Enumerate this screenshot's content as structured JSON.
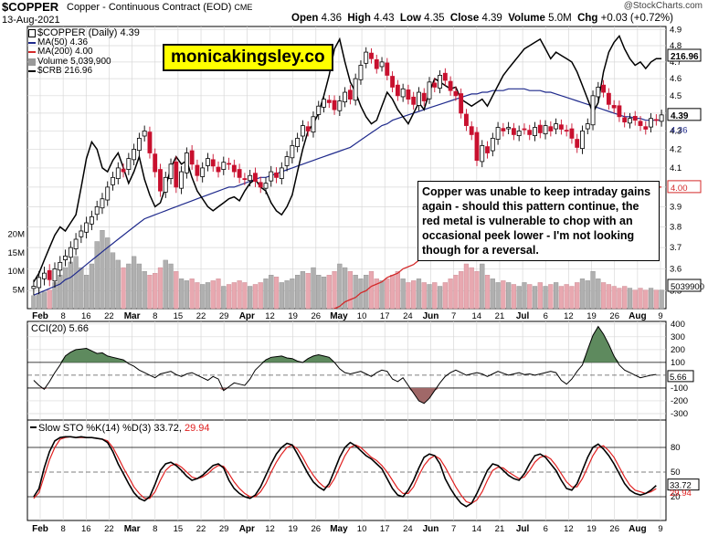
{
  "header": {
    "symbol": "$COPPER",
    "description": "Copper - Continuous Contract (EOD)",
    "exchange": "CME",
    "date": "13-Aug-2021",
    "open_label": "Open",
    "open": "4.36",
    "high_label": "High",
    "high": "4.43",
    "low_label": "Low",
    "low": "4.35",
    "close_label": "Close",
    "close": "4.39",
    "volume_label": "Volume",
    "volume": "5.0M",
    "chg_label": "Chg",
    "chg": "+0.03 (+0.72%)",
    "source": "@StockCharts.com"
  },
  "watermark": "monicakingsley.co",
  "annotation": "Copper was unable to keep intraday gains again - should this pattern continue, the red metal is vulnerable to chop with an occasional peek lower - I'm not looking though for a reversal.",
  "legend": [
    {
      "text": "$COPPER (Daily) 4.39",
      "color": "#000000",
      "kind": "candle"
    },
    {
      "text": "MA(50) 4.36",
      "color": "#1f2a8c",
      "kind": "line"
    },
    {
      "text": "MA(200) 4.00",
      "color": "#d42a2a",
      "kind": "line"
    },
    {
      "text": "Volume 5,039,900",
      "color": "#9a9a9a",
      "kind": "bar"
    },
    {
      "text": "$CRB 216.96",
      "color": "#000000",
      "kind": "line"
    }
  ],
  "colors": {
    "up": "#000000",
    "down": "#c8102e",
    "ma50": "#1f2a8c",
    "ma200": "#d42a2a",
    "vol_up": "#b0b0b0",
    "vol_down": "#e8a8b0",
    "cci_pos": "#5e8a5e",
    "cci_neg": "#a06868",
    "sto_k": "#000000",
    "sto_d": "#e02020",
    "grid": "#d8d8d8"
  },
  "chart_data": [
    {
      "type": "candlestick",
      "title": "$COPPER (Daily) 4.39",
      "ylim": [
        3.42,
        4.92
      ],
      "y_scale": "log",
      "y_ticks": [
        "4.9",
        "4.8",
        "4.7",
        "4.6",
        "4.5",
        "4.4",
        "4.3",
        "4.2",
        "4.1",
        "4.0",
        "3.9",
        "3.8",
        "3.7",
        "3.6",
        "3.5"
      ],
      "x_labels": [
        "Feb",
        "8",
        "16",
        "22",
        "Mar",
        "8",
        "15",
        "22",
        "29",
        "Apr",
        "12",
        "19",
        "26",
        "May",
        "10",
        "17",
        "24",
        "Jun",
        "7",
        "14",
        "21",
        "Jul",
        "6",
        "12",
        "19",
        "26",
        "Aug",
        "9"
      ],
      "last_value_label": "4.39",
      "ma50_label": "4.36",
      "ma200_label": "4.00",
      "crb_label": "216.96",
      "volume_label": "5039900",
      "volume_ticks": [
        "20M",
        "15M",
        "10M",
        "5M"
      ],
      "close": [
        3.52,
        3.56,
        3.58,
        3.55,
        3.6,
        3.63,
        3.66,
        3.7,
        3.74,
        3.78,
        3.82,
        3.85,
        3.9,
        3.94,
        4.0,
        4.05,
        4.1,
        4.08,
        4.15,
        4.2,
        4.26,
        4.3,
        4.18,
        4.08,
        3.98,
        4.05,
        4.12,
        4.0,
        4.08,
        4.18,
        4.12,
        4.06,
        4.1,
        4.15,
        4.11,
        4.08,
        4.13,
        4.12,
        4.08,
        4.05,
        4.04,
        4.06,
        4.03,
        4.0,
        4.02,
        4.08,
        4.05,
        4.1,
        4.16,
        4.22,
        4.26,
        4.33,
        4.3,
        4.38,
        4.44,
        4.48,
        4.46,
        4.42,
        4.47,
        4.52,
        4.48,
        4.6,
        4.68,
        4.76,
        4.72,
        4.66,
        4.7,
        4.62,
        4.55,
        4.5,
        4.54,
        4.48,
        4.45,
        4.52,
        4.47,
        4.58,
        4.55,
        4.62,
        4.59,
        4.53,
        4.5,
        4.4,
        4.33,
        4.28,
        4.14,
        4.22,
        4.18,
        4.26,
        4.32,
        4.3,
        4.32,
        4.28,
        4.3,
        4.31,
        4.28,
        4.32,
        4.29,
        4.33,
        4.3,
        4.34,
        4.31,
        4.3,
        4.26,
        4.21,
        4.3,
        4.34,
        4.5,
        4.55,
        4.52,
        4.45,
        4.43,
        4.38,
        4.35,
        4.37,
        4.36,
        4.33,
        4.31,
        4.37,
        4.36,
        4.39
      ],
      "ma50": [
        3.48,
        3.49,
        3.5,
        3.51,
        3.52,
        3.53,
        3.55,
        3.56,
        3.58,
        3.6,
        3.62,
        3.64,
        3.66,
        3.68,
        3.7,
        3.72,
        3.74,
        3.76,
        3.78,
        3.8,
        3.82,
        3.84,
        3.85,
        3.86,
        3.87,
        3.88,
        3.89,
        3.9,
        3.91,
        3.92,
        3.93,
        3.94,
        3.95,
        3.96,
        3.97,
        3.98,
        3.99,
        4.0,
        4.0,
        4.01,
        4.02,
        4.03,
        4.04,
        4.05,
        4.05,
        4.06,
        4.07,
        4.08,
        4.09,
        4.1,
        4.11,
        4.12,
        4.13,
        4.14,
        4.15,
        4.16,
        4.17,
        4.18,
        4.19,
        4.2,
        4.21,
        4.23,
        4.25,
        4.27,
        4.29,
        4.31,
        4.33,
        4.34,
        4.36,
        4.37,
        4.38,
        4.39,
        4.4,
        4.41,
        4.42,
        4.43,
        4.44,
        4.45,
        4.46,
        4.47,
        4.48,
        4.49,
        4.5,
        4.51,
        4.51,
        4.52,
        4.52,
        4.53,
        4.53,
        4.53,
        4.54,
        4.54,
        4.54,
        4.54,
        4.53,
        4.53,
        4.53,
        4.52,
        4.52,
        4.51,
        4.5,
        4.49,
        4.48,
        4.47,
        4.46,
        4.45,
        4.44,
        4.43,
        4.42,
        4.41,
        4.4,
        4.39,
        4.38,
        4.38,
        4.37,
        4.37,
        4.36,
        4.36,
        4.36,
        4.36
      ],
      "ma200": [
        2.85,
        2.86,
        2.87,
        2.88,
        2.89,
        2.9,
        2.91,
        2.92,
        2.93,
        2.94,
        2.95,
        2.96,
        2.97,
        2.98,
        2.99,
        3.0,
        3.01,
        3.02,
        3.03,
        3.04,
        3.05,
        3.06,
        3.07,
        3.08,
        3.09,
        3.1,
        3.11,
        3.12,
        3.13,
        3.14,
        3.15,
        3.16,
        3.17,
        3.18,
        3.19,
        3.2,
        3.21,
        3.22,
        3.23,
        3.24,
        3.25,
        3.26,
        3.27,
        3.28,
        3.29,
        3.3,
        3.31,
        3.32,
        3.33,
        3.34,
        3.35,
        3.36,
        3.37,
        3.38,
        3.39,
        3.4,
        3.41,
        3.42,
        3.43,
        3.45,
        3.46,
        3.47,
        3.49,
        3.5,
        3.52,
        3.53,
        3.54,
        3.56,
        3.57,
        3.58,
        3.6,
        3.61,
        3.62,
        3.64,
        3.65,
        3.66,
        3.67,
        3.69,
        3.7,
        3.71,
        3.72,
        3.73,
        3.74,
        3.75,
        3.76,
        3.77,
        3.78,
        3.79,
        3.8,
        3.81,
        3.82,
        3.83,
        3.84,
        3.85,
        3.86,
        3.87,
        3.88,
        3.89,
        3.89,
        3.9,
        3.91,
        3.92,
        3.92,
        3.93,
        3.94,
        3.94,
        3.95,
        3.95,
        3.96,
        3.96,
        3.97,
        3.97,
        3.98,
        3.98,
        3.98,
        3.99,
        3.99,
        3.99,
        4.0,
        4.0
      ],
      "crb": [
        3.54,
        3.58,
        3.64,
        3.7,
        3.76,
        3.8,
        3.78,
        3.82,
        3.86,
        4.0,
        4.15,
        4.24,
        4.2,
        4.1,
        4.08,
        4.14,
        4.18,
        4.1,
        4.02,
        4.08,
        4.16,
        4.04,
        3.96,
        3.9,
        3.92,
        4.0,
        4.1,
        4.16,
        4.12,
        4.14,
        4.05,
        3.98,
        3.94,
        3.9,
        3.88,
        3.9,
        3.92,
        3.94,
        3.95,
        3.93,
        3.98,
        4.02,
        4.04,
        4.0,
        3.98,
        3.92,
        3.88,
        3.86,
        3.9,
        3.96,
        4.08,
        4.2,
        4.3,
        4.34,
        4.4,
        4.5,
        4.62,
        4.78,
        4.84,
        4.7,
        4.58,
        4.52,
        4.44,
        4.38,
        4.34,
        4.36,
        4.44,
        4.52,
        4.48,
        4.42,
        4.38,
        4.34,
        4.4,
        4.46,
        4.42,
        4.52,
        4.6,
        4.58,
        4.56,
        4.54,
        4.55,
        4.48,
        4.46,
        4.44,
        4.46,
        4.48,
        4.44,
        4.5,
        4.56,
        4.62,
        4.66,
        4.7,
        4.74,
        4.78,
        4.8,
        4.82,
        4.84,
        4.78,
        4.72,
        4.76,
        4.74,
        4.72,
        4.7,
        4.64,
        4.56,
        4.48,
        4.4,
        4.46,
        4.64,
        4.76,
        4.82,
        4.86,
        4.78,
        4.72,
        4.68,
        4.7,
        4.66,
        4.7,
        4.72,
        4.72
      ],
      "volume_m": [
        3.5,
        4.0,
        4.5,
        5.0,
        7.0,
        9.0,
        11.0,
        12.5,
        14.0,
        11.0,
        9.0,
        12.0,
        18.0,
        21.0,
        19.0,
        15.0,
        13.0,
        11.0,
        12.0,
        14.0,
        12.0,
        10.0,
        9.0,
        9.5,
        11.0,
        13.0,
        12.0,
        10.0,
        8.0,
        7.5,
        8.0,
        7.0,
        6.5,
        7.0,
        7.5,
        8.0,
        6.0,
        6.5,
        7.0,
        7.5,
        7.0,
        6.0,
        6.5,
        7.0,
        8.0,
        9.0,
        8.5,
        7.0,
        7.5,
        8.0,
        9.0,
        10.0,
        9.5,
        11.0,
        9.0,
        8.5,
        9.0,
        10.0,
        12.0,
        11.0,
        10.0,
        9.0,
        8.0,
        9.0,
        10.0,
        8.0,
        7.5,
        8.0,
        9.0,
        10.0,
        8.0,
        7.0,
        7.5,
        8.0,
        7.0,
        6.5,
        7.0,
        6.0,
        7.0,
        8.0,
        9.0,
        10.0,
        12.0,
        11.0,
        10.0,
        12.0,
        9.0,
        8.0,
        7.0,
        7.5,
        7.0,
        6.5,
        6.0,
        7.0,
        6.5,
        6.0,
        7.0,
        6.0,
        6.5,
        7.0,
        6.0,
        6.5,
        6.0,
        7.0,
        8.0,
        7.5,
        10.0,
        8.0,
        7.0,
        6.5,
        6.0,
        5.5,
        6.0,
        5.5,
        5.0,
        5.5,
        5.0,
        5.5,
        5.0,
        5.0
      ]
    },
    {
      "type": "line",
      "title": "CCI(20) 5.66",
      "last_value_label": "5.66",
      "ylim": [
        -350,
        420
      ],
      "y_ticks": [
        "400",
        "300",
        "200",
        "100",
        "0",
        "-100",
        "-200",
        "-300"
      ],
      "values": [
        -40,
        -80,
        -110,
        -50,
        20,
        80,
        150,
        180,
        200,
        205,
        210,
        190,
        170,
        175,
        150,
        140,
        130,
        120,
        90,
        70,
        40,
        20,
        0,
        -20,
        10,
        20,
        30,
        5,
        -10,
        10,
        20,
        0,
        -20,
        -40,
        -10,
        -30,
        -120,
        -90,
        -60,
        -70,
        -80,
        -30,
        40,
        80,
        120,
        140,
        145,
        150,
        135,
        130,
        110,
        100,
        130,
        150,
        160,
        150,
        140,
        100,
        50,
        20,
        10,
        20,
        30,
        10,
        -10,
        20,
        40,
        30,
        -30,
        -50,
        -20,
        -80,
        -140,
        -200,
        -220,
        -180,
        -120,
        -60,
        -10,
        20,
        40,
        20,
        0,
        10,
        20,
        10,
        -10,
        10,
        30,
        15,
        0,
        10,
        20,
        5,
        10,
        0,
        10,
        20,
        30,
        20,
        -40,
        -70,
        -30,
        30,
        80,
        200,
        310,
        380,
        320,
        240,
        150,
        80,
        40,
        20,
        0,
        -20,
        -10,
        0,
        5.66
      ]
    },
    {
      "type": "line",
      "title": "Slow STO %K(14) %D(3) 33.72, 29.94",
      "last_value_labels": [
        "33.72",
        "29.94"
      ],
      "ylim": [
        0,
        100
      ],
      "y_ticks": [
        "80",
        "50",
        "20"
      ],
      "series": [
        {
          "name": "%K(14)",
          "values": [
            20,
            30,
            55,
            75,
            88,
            92,
            93,
            93,
            92,
            93,
            92,
            92,
            91,
            90,
            86,
            75,
            60,
            48,
            36,
            25,
            18,
            15,
            20,
            35,
            52,
            60,
            62,
            58,
            52,
            45,
            40,
            42,
            46,
            52,
            58,
            60,
            55,
            40,
            30,
            24,
            20,
            18,
            22,
            32,
            46,
            60,
            72,
            80,
            85,
            83,
            72,
            60,
            48,
            38,
            32,
            28,
            36,
            52,
            68,
            80,
            86,
            82,
            76,
            70,
            66,
            60,
            54,
            42,
            30,
            22,
            20,
            28,
            40,
            55,
            68,
            72,
            70,
            60,
            42,
            30,
            20,
            12,
            8,
            12,
            24,
            38,
            52,
            60,
            58,
            52,
            46,
            42,
            40,
            48,
            60,
            70,
            72,
            68,
            60,
            52,
            40,
            30,
            28,
            36,
            52,
            68,
            80,
            84,
            78,
            70,
            60,
            48,
            36,
            28,
            24,
            22,
            24,
            28,
            33.72
          ]
        },
        {
          "name": "%D(3)",
          "values": [
            18,
            25,
            45,
            65,
            80,
            90,
            92,
            93,
            92,
            92,
            92,
            92,
            91,
            90,
            88,
            80,
            68,
            55,
            44,
            32,
            24,
            18,
            18,
            26,
            40,
            52,
            58,
            60,
            56,
            50,
            44,
            42,
            44,
            48,
            54,
            58,
            57,
            48,
            38,
            30,
            24,
            20,
            20,
            26,
            36,
            50,
            62,
            72,
            80,
            83,
            78,
            68,
            56,
            46,
            38,
            32,
            32,
            42,
            56,
            70,
            80,
            83,
            80,
            74,
            68,
            64,
            58,
            50,
            40,
            30,
            24,
            24,
            32,
            46,
            58,
            66,
            70,
            66,
            56,
            44,
            32,
            22,
            14,
            12,
            16,
            26,
            40,
            52,
            56,
            55,
            50,
            46,
            42,
            44,
            52,
            62,
            68,
            70,
            66,
            58,
            48,
            38,
            32,
            32,
            42,
            56,
            70,
            80,
            82,
            76,
            68,
            56,
            44,
            34,
            28,
            26,
            24,
            26,
            29.94
          ]
        }
      ]
    }
  ],
  "axes": {
    "cci_ticks": [
      "400",
      "300",
      "200",
      "100",
      "0",
      "-100",
      "-200",
      "-300"
    ]
  }
}
